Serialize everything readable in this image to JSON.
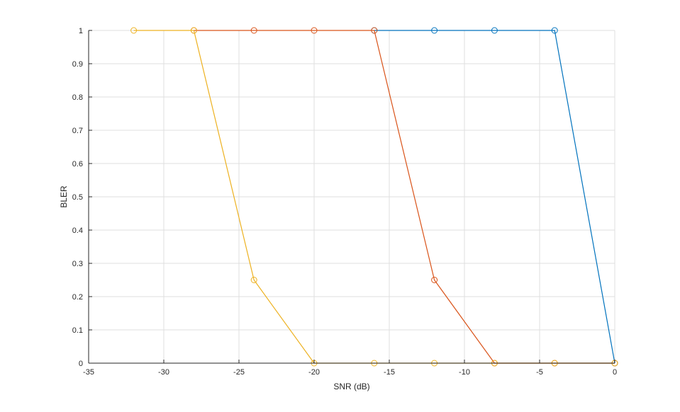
{
  "chart_data": {
    "type": "line",
    "title": "",
    "xlabel": "SNR (dB)",
    "ylabel": "BLER",
    "xlim": [
      -35,
      0
    ],
    "ylim": [
      0,
      1
    ],
    "xticks": [
      -35,
      -30,
      -25,
      -20,
      -15,
      -10,
      -5,
      0
    ],
    "yticks": [
      0,
      0.1,
      0.2,
      0.3,
      0.4,
      0.5,
      0.6,
      0.7,
      0.8,
      0.9,
      1
    ],
    "grid": true,
    "marker": "circle",
    "series": [
      {
        "color": "#0072BD",
        "x": [
          -16,
          -12,
          -8,
          -4,
          0
        ],
        "y": [
          1,
          1,
          1,
          1,
          0
        ]
      },
      {
        "color": "#D95319",
        "x": [
          -28,
          -24,
          -20,
          -16,
          -12,
          -8,
          -4,
          0
        ],
        "y": [
          1,
          1,
          1,
          1,
          0.25,
          0,
          0,
          0
        ]
      },
      {
        "color": "#EDB120",
        "x": [
          -32,
          -28,
          -24,
          -20,
          -16,
          -12,
          -8,
          -4,
          0
        ],
        "y": [
          1,
          1,
          0.25,
          0,
          0,
          0,
          0,
          0,
          0
        ]
      }
    ]
  }
}
